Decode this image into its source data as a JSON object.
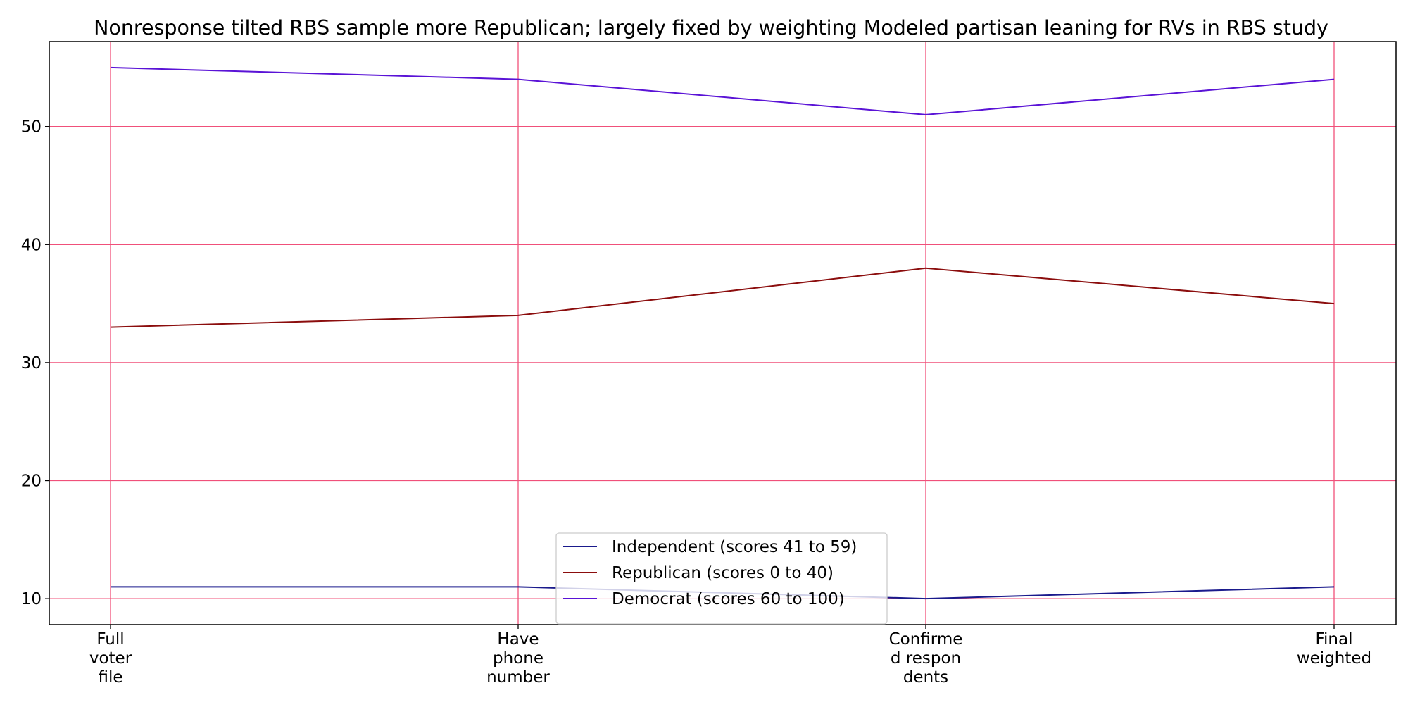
{
  "chart_data": {
    "type": "line",
    "title": "Nonresponse tilted RBS sample more Republican; largely fixed by weighting Modeled partisan leaning for RVs in RBS study",
    "xlabel": "",
    "ylabel": "",
    "categories": [
      [
        "Full",
        "voter",
        "file"
      ],
      [
        "Have",
        "phone",
        "number"
      ],
      [
        "Confirme",
        "d respon",
        "dents"
      ],
      [
        "Final",
        "weighted"
      ]
    ],
    "yticks": [
      10,
      20,
      30,
      40,
      50
    ],
    "ylim": [
      7.8,
      57.2
    ],
    "grid": true,
    "grid_color": "#f0507a",
    "legend_position": "lower center",
    "series": [
      {
        "name": "Independent (scores 41 to 59)",
        "color": "#1a1a8c",
        "values": [
          11,
          11,
          10,
          11
        ]
      },
      {
        "name": "Republican (scores 0 to 40)",
        "color": "#8b0d0d",
        "values": [
          33,
          34,
          38,
          35
        ]
      },
      {
        "name": "Democrat (scores 60 to 100)",
        "color": "#5a13d6",
        "values": [
          55,
          54,
          51,
          54
        ]
      }
    ]
  }
}
